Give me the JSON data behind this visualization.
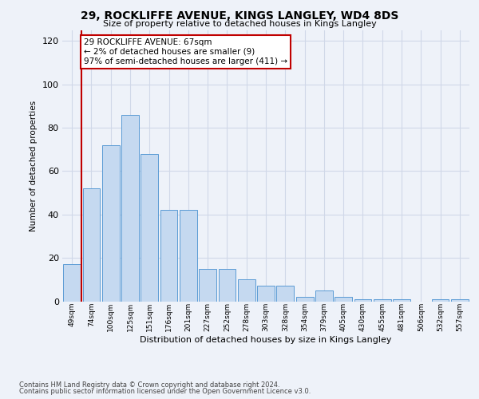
{
  "title1": "29, ROCKLIFFE AVENUE, KINGS LANGLEY, WD4 8DS",
  "title2": "Size of property relative to detached houses in Kings Langley",
  "xlabel": "Distribution of detached houses by size in Kings Langley",
  "ylabel": "Number of detached properties",
  "categories": [
    "49sqm",
    "74sqm",
    "100sqm",
    "125sqm",
    "151sqm",
    "176sqm",
    "201sqm",
    "227sqm",
    "252sqm",
    "278sqm",
    "303sqm",
    "328sqm",
    "354sqm",
    "379sqm",
    "405sqm",
    "430sqm",
    "455sqm",
    "481sqm",
    "506sqm",
    "532sqm",
    "557sqm"
  ],
  "values": [
    17,
    52,
    72,
    86,
    68,
    42,
    42,
    15,
    15,
    10,
    7,
    7,
    2,
    5,
    2,
    1,
    1,
    1,
    0,
    1,
    1
  ],
  "bar_color": "#c5d9f0",
  "bar_edge_color": "#5b9bd5",
  "highlight_line_color": "#c00000",
  "ylim": [
    0,
    125
  ],
  "yticks": [
    0,
    20,
    40,
    60,
    80,
    100,
    120
  ],
  "grid_color": "#d0d8e8",
  "annotation_text": "29 ROCKLIFFE AVENUE: 67sqm\n← 2% of detached houses are smaller (9)\n97% of semi-detached houses are larger (411) →",
  "annotation_box_color": "#ffffff",
  "annotation_box_edge": "#c00000",
  "footer1": "Contains HM Land Registry data © Crown copyright and database right 2024.",
  "footer2": "Contains public sector information licensed under the Open Government Licence v3.0.",
  "bg_color": "#eef2f9"
}
